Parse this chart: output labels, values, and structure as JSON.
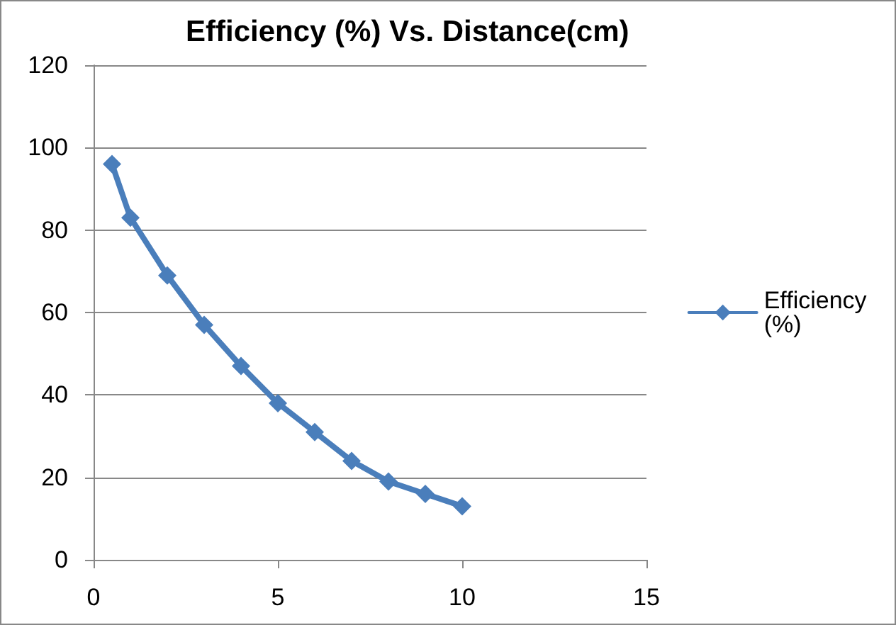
{
  "chart_data": {
    "type": "line",
    "title": "Efficiency (%) Vs. Distance(cm)",
    "x": [
      0.5,
      1,
      2,
      3,
      4,
      5,
      6,
      7,
      8,
      9,
      10
    ],
    "series": [
      {
        "name": "Efficiency (%)",
        "color": "#4a7ebb",
        "values": [
          96,
          83,
          69,
          57,
          47,
          38,
          31,
          24,
          19,
          16,
          13
        ]
      }
    ],
    "xlim": [
      0,
      15
    ],
    "xticks": [
      0,
      5,
      10,
      15
    ],
    "ylim": [
      0,
      120
    ],
    "yticks": [
      0,
      20,
      40,
      60,
      80,
      100,
      120
    ],
    "grid": "y",
    "legend": "right",
    "marker": "diamond",
    "line_style": "solid"
  }
}
